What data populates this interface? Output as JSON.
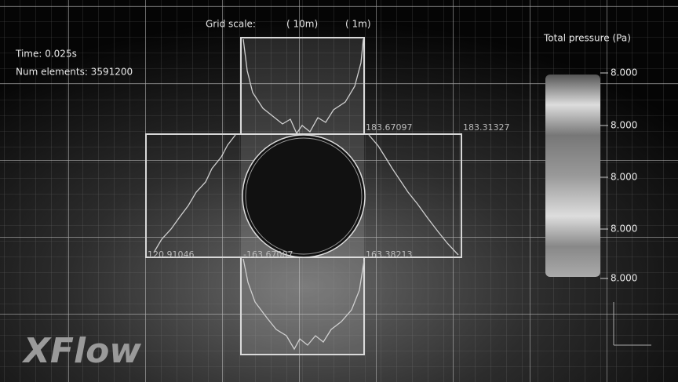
{
  "overlay": {
    "time": "Time: 0.025s",
    "num_elements": "Num elements: 3591200"
  },
  "grid_scale": {
    "label": "Grid scale:",
    "major": "( 10m)",
    "minor": "( 1m)"
  },
  "legend": {
    "title": "Total pressure (Pa)",
    "labels": [
      "8.000",
      "8.000",
      "8.000",
      "8.000",
      "8.000"
    ]
  },
  "plot_labels": [
    "183.67097",
    "183.31327",
    "120.91046",
    "-163.67007",
    "163.38213"
  ],
  "logo": "XFlow"
}
